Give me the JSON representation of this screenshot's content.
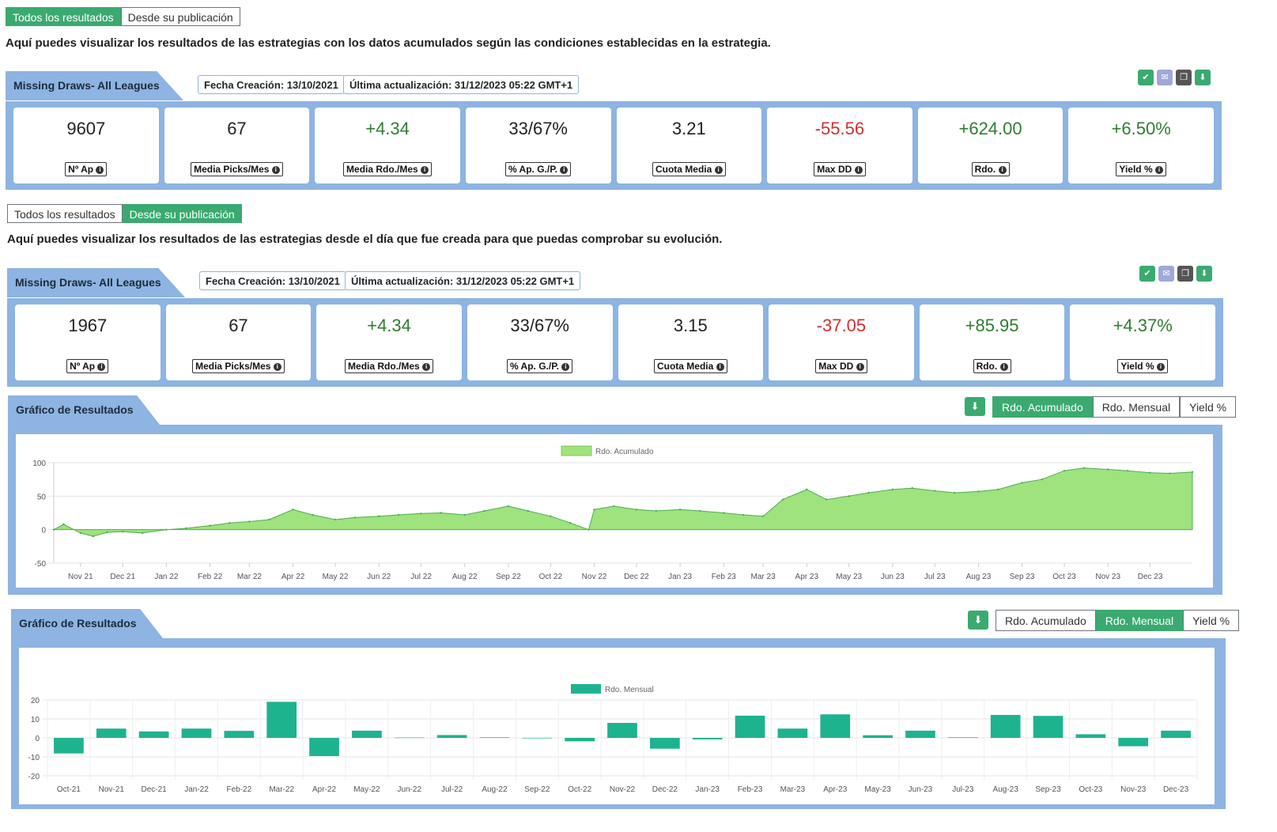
{
  "colors": {
    "accent": "#3aaa70",
    "panel": "#8db4e2",
    "positive": "#2e7d32",
    "negative": "#d32f2f",
    "area_fill": "#9ee37d",
    "bar_fill": "#1eb38f"
  },
  "section1": {
    "tabs": [
      "Todos los resultados",
      "Desde su publicación"
    ],
    "active_tab": 0,
    "description": "Aquí puedes visualizar los resultados de las estrategias con los datos acumulados según las condiciones establecidas en la estrategia.",
    "strategy_name": "Missing Draws- All Leagues",
    "created": "Fecha Creación: 13/10/2021",
    "updated": "Última actualización: 31/12/2023 05:22 GMT+1",
    "icons": [
      "check-icon",
      "email-icon",
      "copy-icon",
      "download-icon"
    ],
    "stats": [
      {
        "value": "9607",
        "label": "Nº Ap",
        "tone": "neu"
      },
      {
        "value": "67",
        "label": "Media Picks/Mes",
        "tone": "neu"
      },
      {
        "value": "+4.34",
        "label": "Media Rdo./Mes",
        "tone": "pos"
      },
      {
        "value": "33/67%",
        "label": "% Ap. G./P.",
        "tone": "neu"
      },
      {
        "value": "3.21",
        "label": "Cuota Media",
        "tone": "neu"
      },
      {
        "value": "-55.56",
        "label": "Max DD",
        "tone": "neg"
      },
      {
        "value": "+624.00",
        "label": "Rdo.",
        "tone": "pos"
      },
      {
        "value": "+6.50%",
        "label": "Yield %",
        "tone": "pos"
      }
    ]
  },
  "section2": {
    "tabs": [
      "Todos los resultados",
      "Desde su publicación"
    ],
    "active_tab": 1,
    "description": "Aquí puedes visualizar los resultados de las estrategias desde el día que fue creada para que puedas comprobar su evolución.",
    "strategy_name": "Missing Draws- All Leagues",
    "created": "Fecha Creación: 13/10/2021",
    "updated": "Última actualización: 31/12/2023 05:22 GMT+1",
    "icons": [
      "check-icon",
      "email-icon",
      "copy-icon",
      "download-icon"
    ],
    "stats": [
      {
        "value": "1967",
        "label": "Nº Ap",
        "tone": "neu"
      },
      {
        "value": "67",
        "label": "Media Picks/Mes",
        "tone": "neu"
      },
      {
        "value": "+4.34",
        "label": "Media Rdo./Mes",
        "tone": "pos"
      },
      {
        "value": "33/67%",
        "label": "% Ap. G./P.",
        "tone": "neu"
      },
      {
        "value": "3.15",
        "label": "Cuota Media",
        "tone": "neu"
      },
      {
        "value": "-37.05",
        "label": "Max DD",
        "tone": "neg"
      },
      {
        "value": "+85.95",
        "label": "Rdo.",
        "tone": "pos"
      },
      {
        "value": "+4.37%",
        "label": "Yield %",
        "tone": "pos"
      }
    ]
  },
  "chart1": {
    "heading": "Gráfico de Resultados",
    "toggles": [
      "Rdo. Acumulado",
      "Rdo. Mensual",
      "Yield %"
    ],
    "active_toggle": 0
  },
  "chart2": {
    "heading": "Gráfico de Resultados",
    "toggles": [
      "Rdo. Acumulado",
      "Rdo. Mensual",
      "Yield %"
    ],
    "active_toggle": 1
  },
  "chart_data": [
    {
      "type": "area",
      "legend": "Rdo. Acumulado",
      "x_labels": [
        "Nov 21",
        "Dec 21",
        "Jan 22",
        "Feb 22",
        "Mar 22",
        "Apr 22",
        "May 22",
        "Jun 22",
        "Jul 22",
        "Aug 22",
        "Sep 22",
        "Oct 22",
        "Nov 22",
        "Dec 22",
        "Jan 23",
        "Feb 23",
        "Mar 23",
        "Apr 23",
        "May 23",
        "Jun 23",
        "Jul 23",
        "Aug 23",
        "Sep 23",
        "Oct 23",
        "Nov 23",
        "Dec 23"
      ],
      "x": [
        "2021-10-13",
        "2021-10-20",
        "2021-11-01",
        "2021-11-10",
        "2021-11-20",
        "2021-12-01",
        "2021-12-15",
        "2022-01-01",
        "2022-01-15",
        "2022-02-01",
        "2022-02-15",
        "2022-03-01",
        "2022-03-15",
        "2022-04-01",
        "2022-04-15",
        "2022-05-01",
        "2022-05-15",
        "2022-06-01",
        "2022-06-15",
        "2022-07-01",
        "2022-07-15",
        "2022-08-01",
        "2022-08-15",
        "2022-09-01",
        "2022-09-15",
        "2022-10-01",
        "2022-10-15",
        "2022-10-28",
        "2022-11-01",
        "2022-11-15",
        "2022-12-01",
        "2022-12-15",
        "2023-01-01",
        "2023-01-15",
        "2023-02-01",
        "2023-02-15",
        "2023-03-01",
        "2023-03-15",
        "2023-04-01",
        "2023-04-15",
        "2023-05-01",
        "2023-05-15",
        "2023-06-01",
        "2023-06-15",
        "2023-07-01",
        "2023-07-15",
        "2023-08-01",
        "2023-08-15",
        "2023-09-01",
        "2023-09-15",
        "2023-10-01",
        "2023-10-15",
        "2023-11-01",
        "2023-11-15",
        "2023-12-01",
        "2023-12-15",
        "2023-12-31"
      ],
      "y": [
        0,
        8,
        -5,
        -10,
        -4,
        -3,
        -5,
        0,
        2,
        6,
        10,
        12,
        15,
        30,
        22,
        15,
        18,
        20,
        22,
        24,
        25,
        22,
        28,
        35,
        28,
        20,
        10,
        0,
        30,
        35,
        30,
        28,
        30,
        28,
        25,
        22,
        20,
        45,
        60,
        45,
        50,
        55,
        60,
        62,
        58,
        55,
        57,
        60,
        70,
        75,
        88,
        92,
        90,
        88,
        85,
        84,
        86
      ],
      "ylim": [
        -50,
        100
      ],
      "yticks": [
        -50,
        0,
        50,
        100
      ]
    },
    {
      "type": "bar",
      "legend": "Rdo. Mensual",
      "categories": [
        "Oct-21",
        "Nov-21",
        "Dec-21",
        "Jan-22",
        "Feb-22",
        "Mar-22",
        "Apr-22",
        "May-22",
        "Jun-22",
        "Jul-22",
        "Aug-22",
        "Sep-22",
        "Oct-22",
        "Nov-22",
        "Dec-22",
        "Jan-23",
        "Feb-23",
        "Mar-23",
        "Apr-23",
        "May-23",
        "Jun-23",
        "Jul-23",
        "Aug-23",
        "Sep-23",
        "Oct-23",
        "Nov-23",
        "Dec-23"
      ],
      "values": [
        -8.2,
        4.9,
        3.4,
        4.9,
        3.7,
        19,
        -9.6,
        3.8,
        0.2,
        1.5,
        0.3,
        0,
        -1.8,
        7.9,
        -5.7,
        -0.8,
        11.7,
        4.9,
        12.4,
        1.4,
        3.8,
        0.3,
        12.1,
        11.6,
        1.9,
        -4.4,
        3.8
      ],
      "ylim": [
        -20,
        20
      ],
      "yticks": [
        -20,
        -10,
        0,
        10,
        20
      ]
    }
  ]
}
